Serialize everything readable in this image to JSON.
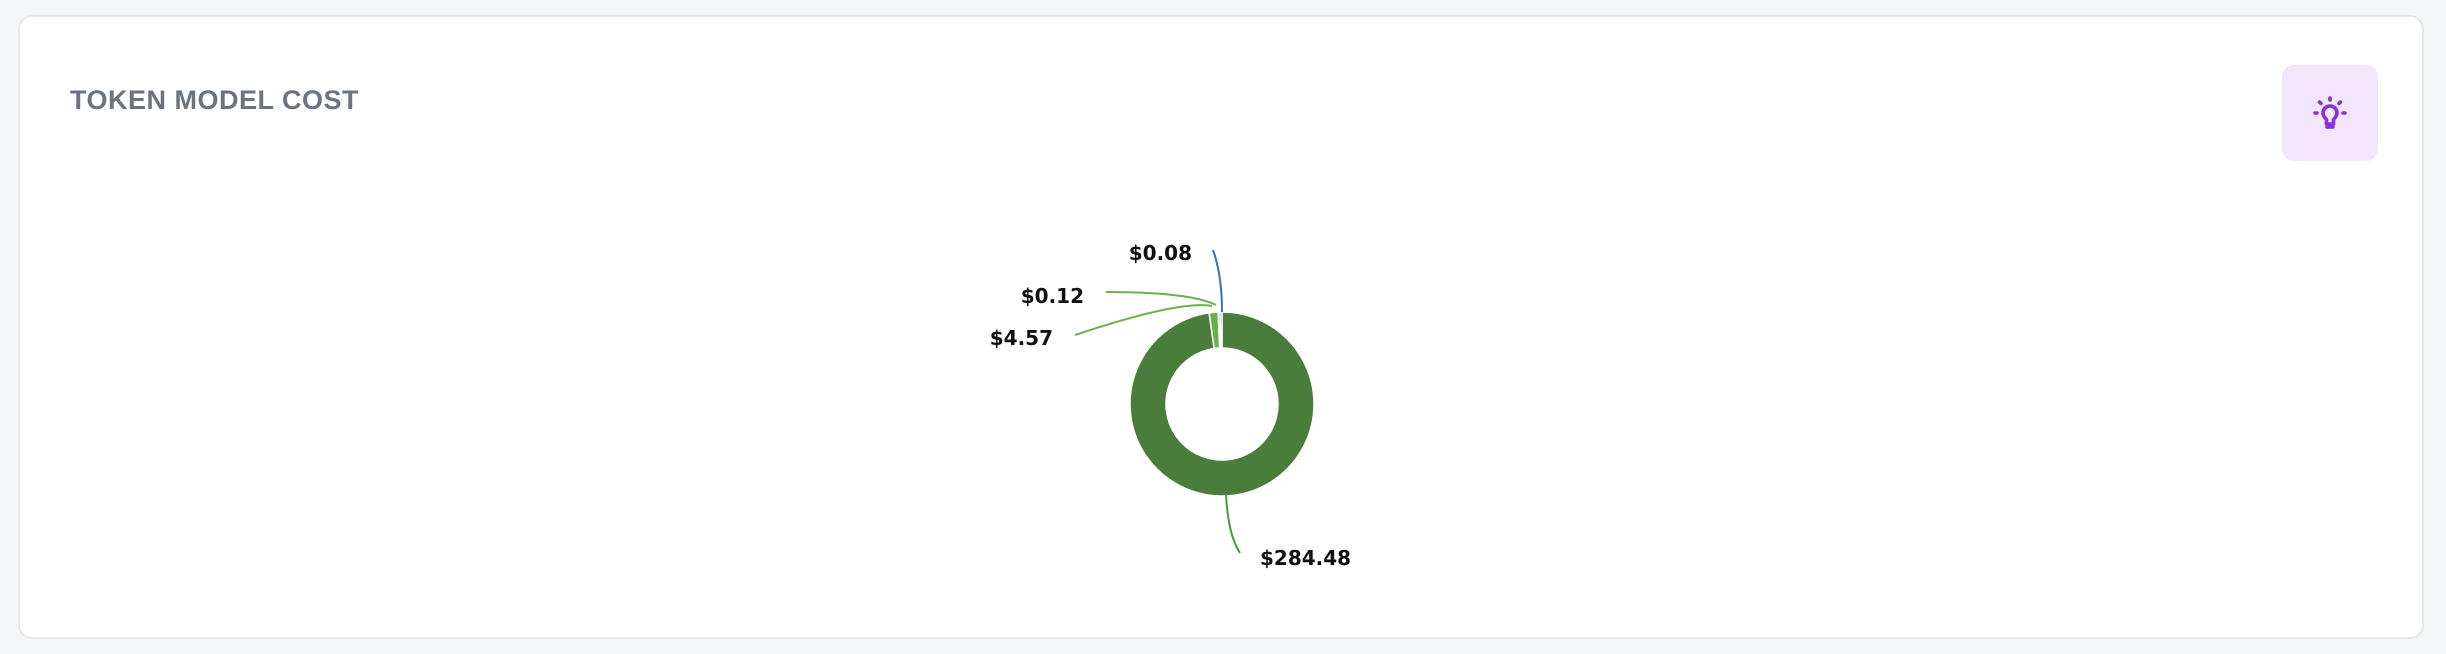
{
  "card": {
    "title": "TOKEN MODEL COST",
    "insight_icon": "lightbulb-icon",
    "insight_color": "#8b2fd9"
  },
  "chart_data": {
    "type": "pie",
    "variant": "donut",
    "title": "",
    "series": [
      {
        "values": [
          284.48,
          4.57,
          0.12,
          0.08
        ],
        "labels": [
          "$284.48",
          "$4.57",
          "$0.12",
          "$0.08"
        ],
        "colors": [
          "#4a7d3b",
          "#6ab04c",
          "#6ab04c",
          "#3d6fb4"
        ]
      }
    ]
  }
}
